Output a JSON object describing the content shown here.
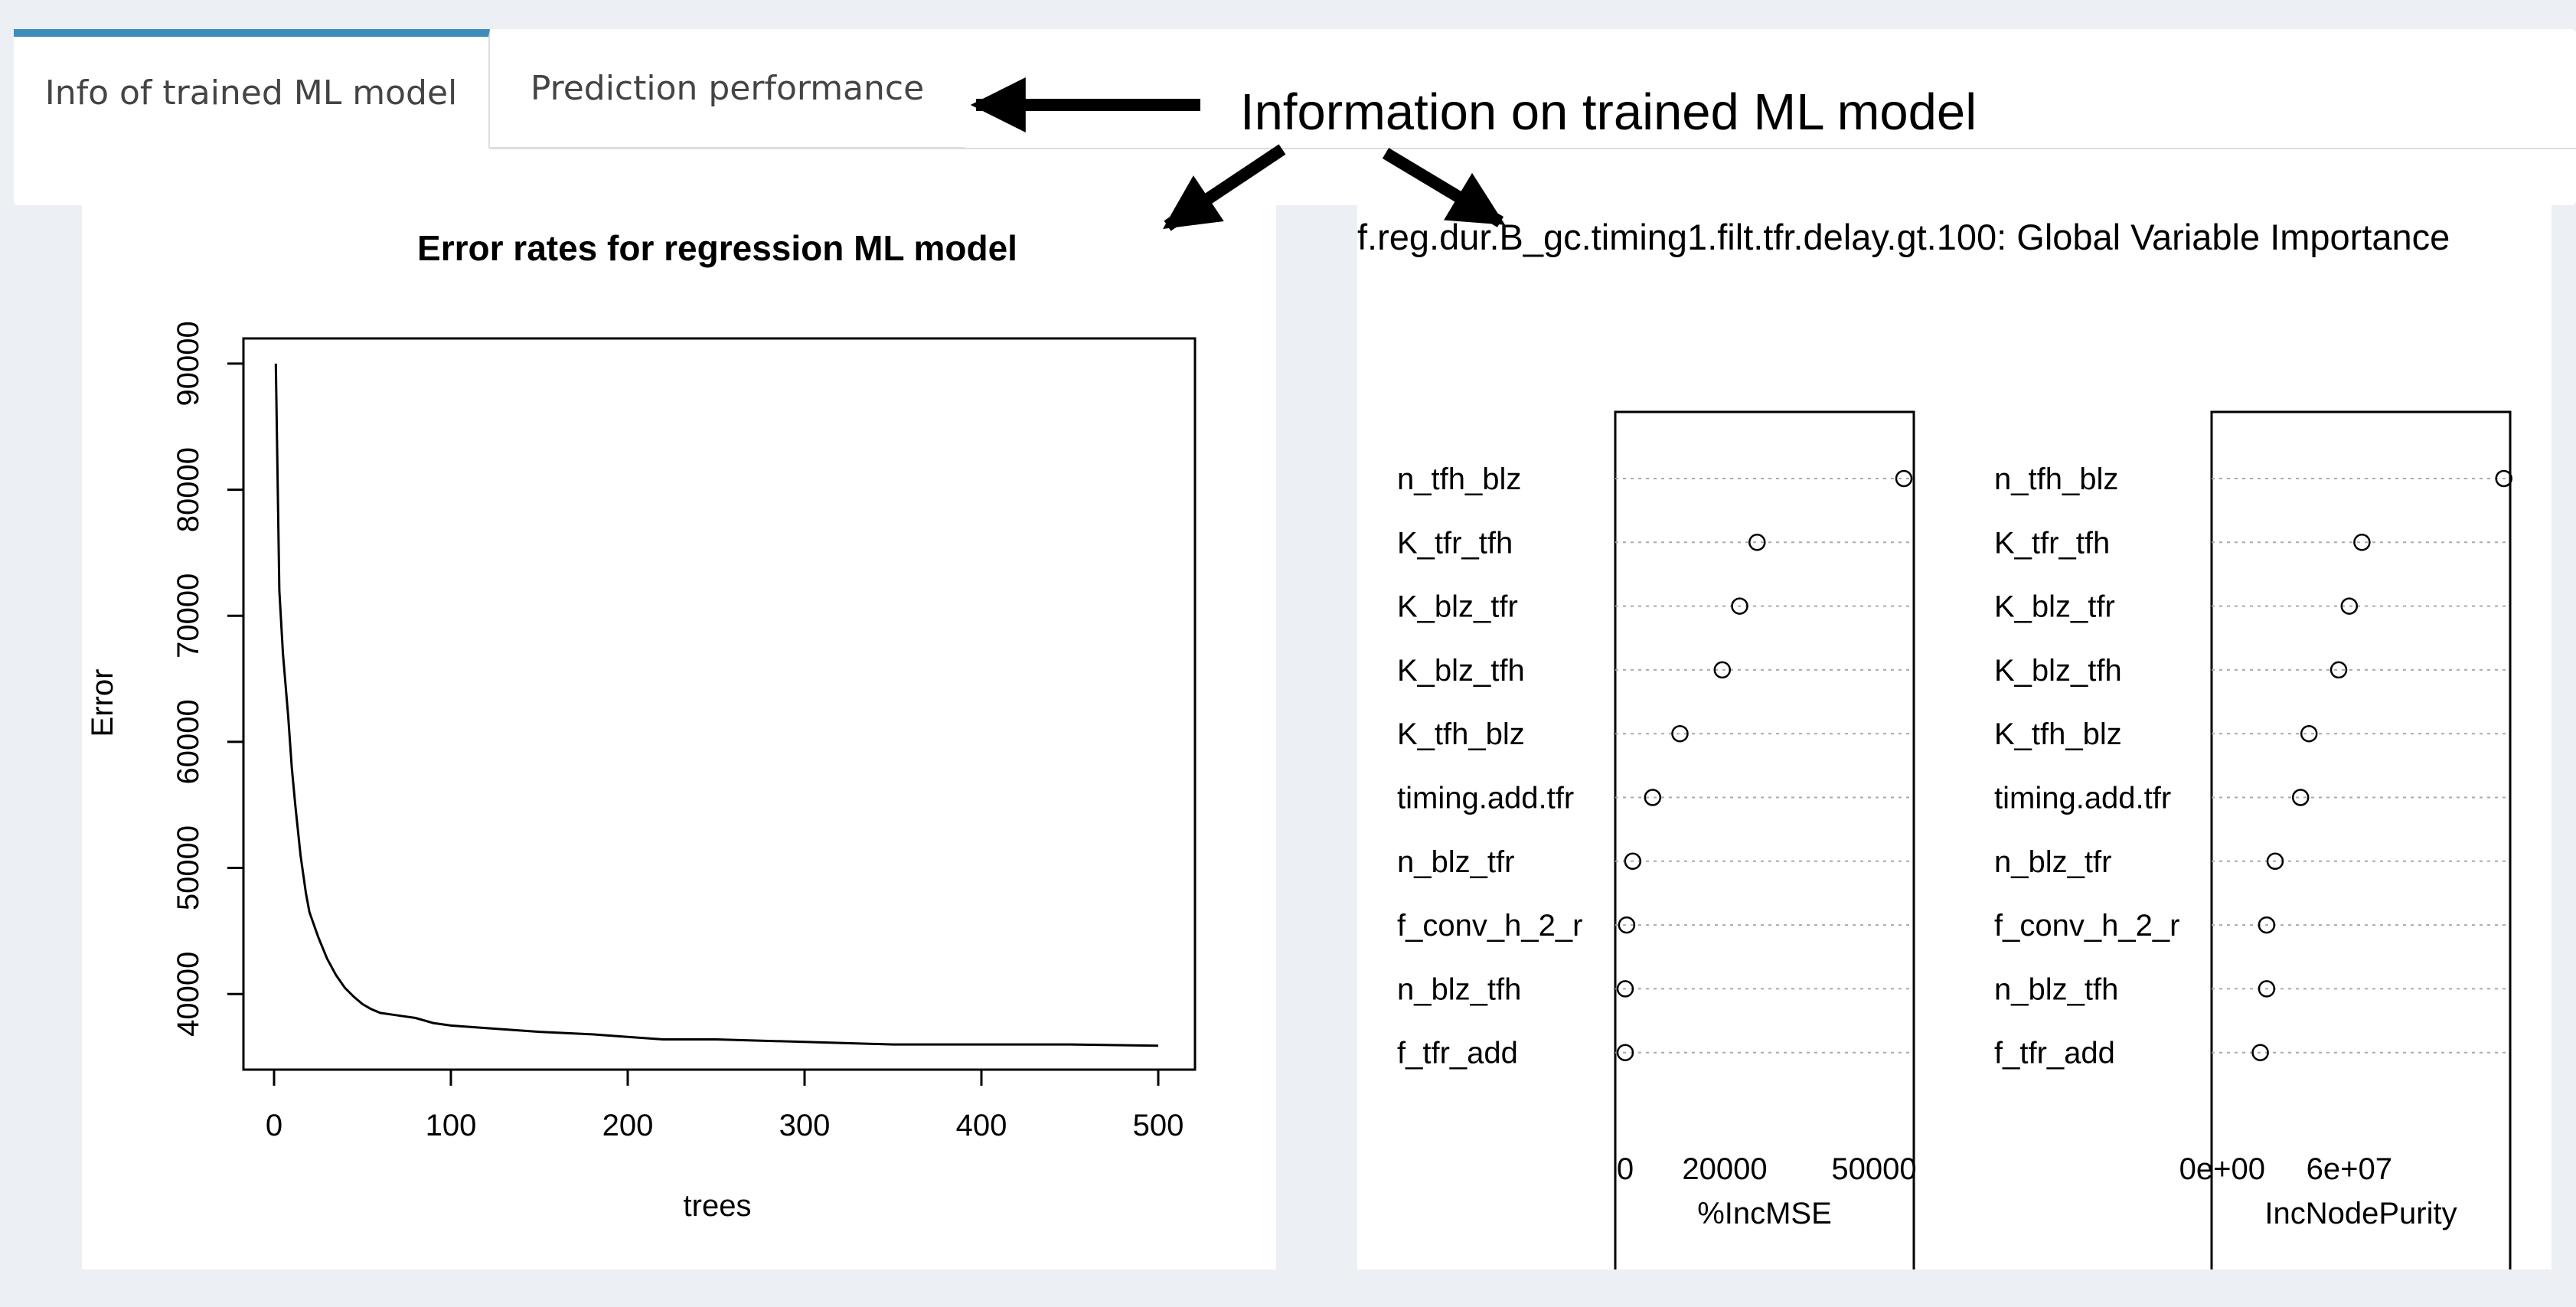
{
  "tabs": [
    {
      "label": "Info of trained ML model",
      "active": true
    },
    {
      "label": "Prediction performance",
      "active": false
    }
  ],
  "annotation": {
    "text": "Information on trained ML model"
  },
  "error_plot": {
    "title": "Error rates for regression ML model",
    "xlabel": "trees",
    "ylabel": "Error",
    "xticks": [
      "0",
      "100",
      "200",
      "300",
      "400",
      "500"
    ],
    "yticks": [
      "40000",
      "50000",
      "60000",
      "70000",
      "80000",
      "90000"
    ]
  },
  "varimp": {
    "title": "f.reg.dur.B_gc.timing1.filt.tfr.delay.gt.100: Global Variable Importance",
    "variables": [
      "n_tfh_blz",
      "K_tfr_tfh",
      "K_blz_tfr",
      "K_blz_tfh",
      "K_tfh_blz",
      "timing.add.tfr",
      "n_blz_tfr",
      "f_conv_h_2_r",
      "n_blz_tfh",
      "f_tfr_add"
    ],
    "left_xlabel": "%IncMSE",
    "right_xlabel": "IncNodePurity",
    "left_ticks": [
      "0",
      "20000",
      "50000"
    ],
    "right_ticks": [
      "0e+00",
      "6e+07"
    ]
  },
  "chart_data": [
    {
      "type": "line",
      "title": "Error rates for regression ML model",
      "xlabel": "trees",
      "ylabel": "Error",
      "xlim": [
        0,
        500
      ],
      "ylim": [
        34000,
        92000
      ],
      "x": [
        1,
        3,
        5,
        8,
        10,
        12,
        15,
        18,
        20,
        25,
        30,
        35,
        40,
        45,
        50,
        55,
        60,
        70,
        80,
        90,
        100,
        120,
        150,
        180,
        200,
        220,
        250,
        300,
        350,
        400,
        450,
        500
      ],
      "y": [
        90000,
        72000,
        67000,
        62000,
        58000,
        55000,
        51000,
        48000,
        46500,
        44500,
        42800,
        41500,
        40500,
        39800,
        39200,
        38800,
        38500,
        38300,
        38100,
        37700,
        37500,
        37300,
        37000,
        36800,
        36600,
        36400,
        36400,
        36200,
        36000,
        36000,
        36000,
        35900
      ]
    },
    {
      "type": "scatter",
      "title": "f.reg.dur.B_gc.timing1.filt.tfr.delay.gt.100: Global Variable Importance",
      "xlabel": "%IncMSE",
      "categories": [
        "n_tfh_blz",
        "K_tfr_tfh",
        "K_blz_tfr",
        "K_blz_tfh",
        "K_tfh_blz",
        "timing.add.tfr",
        "n_blz_tfr",
        "f_conv_h_2_r",
        "n_blz_tfh",
        "f_tfr_add"
      ],
      "values": [
        56000,
        26500,
        23000,
        19500,
        11000,
        5500,
        1500,
        300,
        0,
        0
      ],
      "xlim": [
        -2000,
        58000
      ]
    },
    {
      "type": "scatter",
      "title": "f.reg.dur.B_gc.timing1.filt.tfr.delay.gt.100: Global Variable Importance",
      "xlabel": "IncNodePurity",
      "categories": [
        "n_tfh_blz",
        "K_tfr_tfh",
        "K_blz_tfr",
        "K_blz_tfh",
        "K_tfh_blz",
        "timing.add.tfr",
        "n_blz_tfr",
        "f_conv_h_2_r",
        "n_blz_tfh",
        "f_tfr_add"
      ],
      "values": [
        133000000,
        66000000,
        60000000,
        55000000,
        41000000,
        37000000,
        25000000,
        21000000,
        21000000,
        18000000
      ],
      "xlim": [
        -5000000,
        136000000
      ]
    }
  ]
}
